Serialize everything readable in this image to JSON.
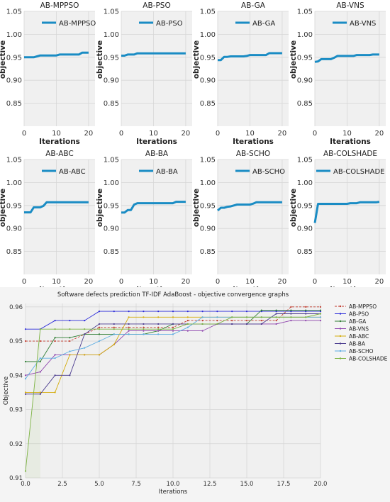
{
  "chart_data": [
    {
      "type": "line",
      "title": "AB-MPPSO",
      "xlabel": "Iterations",
      "ylabel": "objective",
      "xlim": [
        0,
        22
      ],
      "ylim": [
        0.8,
        1.05
      ],
      "xticks": [
        0,
        10,
        20
      ],
      "yticks": [
        0.85,
        0.9,
        0.95,
        1.0,
        1.05
      ],
      "legend": "top-right",
      "grid": true,
      "series": [
        {
          "name": "AB-MPPSO",
          "x": [
            0,
            1,
            2,
            3,
            4,
            5,
            6,
            7,
            8,
            9,
            10,
            11,
            12,
            13,
            14,
            15,
            16,
            17,
            18,
            19,
            20
          ],
          "values": [
            0.95,
            0.95,
            0.95,
            0.95,
            0.952,
            0.954,
            0.954,
            0.954,
            0.954,
            0.954,
            0.954,
            0.956,
            0.956,
            0.956,
            0.956,
            0.956,
            0.956,
            0.956,
            0.96,
            0.96,
            0.96
          ]
        }
      ]
    },
    {
      "type": "line",
      "title": "AB-PSO",
      "xlabel": "Iterations",
      "ylabel": "objective",
      "xlim": [
        0,
        22
      ],
      "ylim": [
        0.8,
        1.05
      ],
      "xticks": [
        0,
        10,
        20
      ],
      "yticks": [
        0.85,
        0.9,
        0.95,
        1.0,
        1.05
      ],
      "legend": "top-right",
      "grid": true,
      "series": [
        {
          "name": "AB-PSO",
          "x": [
            0,
            1,
            2,
            3,
            4,
            5,
            6,
            7,
            8,
            9,
            10,
            11,
            12,
            13,
            14,
            15,
            16,
            17,
            18,
            19,
            20
          ],
          "values": [
            0.9535,
            0.9535,
            0.956,
            0.956,
            0.956,
            0.9587,
            0.9587,
            0.9587,
            0.9587,
            0.9587,
            0.9587,
            0.9587,
            0.9587,
            0.9587,
            0.9587,
            0.9587,
            0.9587,
            0.9587,
            0.9587,
            0.9587,
            0.9587
          ]
        }
      ]
    },
    {
      "type": "line",
      "title": "AB-GA",
      "xlabel": "Iterations",
      "ylabel": "objective",
      "xlim": [
        0,
        22
      ],
      "ylim": [
        0.8,
        1.05
      ],
      "xticks": [
        0,
        10,
        20
      ],
      "yticks": [
        0.85,
        0.9,
        0.95,
        1.0,
        1.05
      ],
      "legend": "top-right",
      "grid": true,
      "series": [
        {
          "name": "AB-GA",
          "x": [
            0,
            1,
            2,
            3,
            4,
            5,
            6,
            7,
            8,
            9,
            10,
            11,
            12,
            13,
            14,
            15,
            16,
            17,
            18,
            19,
            20
          ],
          "values": [
            0.944,
            0.944,
            0.951,
            0.951,
            0.952,
            0.952,
            0.952,
            0.952,
            0.952,
            0.953,
            0.955,
            0.955,
            0.955,
            0.955,
            0.955,
            0.955,
            0.959,
            0.959,
            0.959,
            0.959,
            0.959
          ]
        }
      ]
    },
    {
      "type": "line",
      "title": "AB-VNS",
      "xlabel": "Iterations",
      "ylabel": "objective",
      "xlim": [
        0,
        22
      ],
      "ylim": [
        0.8,
        1.05
      ],
      "xticks": [
        0,
        10,
        20
      ],
      "yticks": [
        0.85,
        0.9,
        0.95,
        1.0,
        1.05
      ],
      "legend": "top-right",
      "grid": true,
      "series": [
        {
          "name": "AB-VNS",
          "x": [
            0,
            1,
            2,
            3,
            4,
            5,
            6,
            7,
            8,
            9,
            10,
            11,
            12,
            13,
            14,
            15,
            16,
            17,
            18,
            19,
            20
          ],
          "values": [
            0.94,
            0.941,
            0.946,
            0.946,
            0.946,
            0.946,
            0.949,
            0.953,
            0.953,
            0.953,
            0.953,
            0.953,
            0.953,
            0.955,
            0.955,
            0.955,
            0.955,
            0.955,
            0.956,
            0.956,
            0.956
          ]
        }
      ]
    },
    {
      "type": "line",
      "title": "AB-ABC",
      "xlabel": "Iterations",
      "ylabel": "objective",
      "xlim": [
        0,
        22
      ],
      "ylim": [
        0.8,
        1.05
      ],
      "xticks": [
        0,
        10,
        20
      ],
      "yticks": [
        0.85,
        0.9,
        0.95,
        1.0,
        1.05
      ],
      "legend": "top-right",
      "grid": true,
      "series": [
        {
          "name": "AB-ABC",
          "x": [
            0,
            1,
            2,
            3,
            4,
            5,
            6,
            7,
            8,
            9,
            10,
            11,
            12,
            13,
            14,
            15,
            16,
            17,
            18,
            19,
            20
          ],
          "values": [
            0.935,
            0.935,
            0.935,
            0.946,
            0.946,
            0.946,
            0.949,
            0.957,
            0.957,
            0.957,
            0.957,
            0.957,
            0.957,
            0.957,
            0.957,
            0.957,
            0.957,
            0.957,
            0.957,
            0.957,
            0.957
          ]
        }
      ]
    },
    {
      "type": "line",
      "title": "AB-BA",
      "xlabel": "Iterations",
      "ylabel": "objective",
      "xlim": [
        0,
        22
      ],
      "ylim": [
        0.8,
        1.05
      ],
      "xticks": [
        0,
        10,
        20
      ],
      "yticks": [
        0.85,
        0.9,
        0.95,
        1.0,
        1.05
      ],
      "legend": "top-right",
      "grid": true,
      "series": [
        {
          "name": "AB-BA",
          "x": [
            0,
            1,
            2,
            3,
            4,
            5,
            6,
            7,
            8,
            9,
            10,
            11,
            12,
            13,
            14,
            15,
            16,
            17,
            18,
            19,
            20
          ],
          "values": [
            0.9345,
            0.9345,
            0.94,
            0.94,
            0.952,
            0.955,
            0.955,
            0.955,
            0.955,
            0.955,
            0.955,
            0.955,
            0.955,
            0.955,
            0.955,
            0.955,
            0.955,
            0.958,
            0.958,
            0.958,
            0.958
          ]
        }
      ]
    },
    {
      "type": "line",
      "title": "AB-SCHO",
      "xlabel": "Iterations",
      "ylabel": "objective",
      "xlim": [
        0,
        22
      ],
      "ylim": [
        0.8,
        1.05
      ],
      "xticks": [
        0,
        10,
        20
      ],
      "yticks": [
        0.85,
        0.9,
        0.95,
        1.0,
        1.05
      ],
      "legend": "top-right",
      "grid": true,
      "series": [
        {
          "name": "AB-SCHO",
          "x": [
            0,
            1,
            2,
            3,
            4,
            5,
            6,
            7,
            8,
            9,
            10,
            11,
            12,
            13,
            14,
            15,
            16,
            17,
            18,
            19,
            20
          ],
          "values": [
            0.939,
            0.945,
            0.945,
            0.947,
            0.948,
            0.95,
            0.952,
            0.952,
            0.952,
            0.952,
            0.952,
            0.954,
            0.957,
            0.957,
            0.957,
            0.957,
            0.957,
            0.957,
            0.957,
            0.957,
            0.957
          ]
        }
      ]
    },
    {
      "type": "line",
      "title": "AB-COLSHADE",
      "xlabel": "Iterations",
      "ylabel": "objective",
      "xlim": [
        0,
        22
      ],
      "ylim": [
        0.8,
        1.05
      ],
      "xticks": [
        0,
        10,
        20
      ],
      "yticks": [
        0.85,
        0.9,
        0.95,
        1.0,
        1.05
      ],
      "legend": "top",
      "grid": true,
      "series": [
        {
          "name": "AB-COLSHADE",
          "x": [
            0,
            1,
            2,
            3,
            4,
            5,
            6,
            7,
            8,
            9,
            10,
            11,
            12,
            13,
            14,
            15,
            16,
            17,
            18,
            19,
            20
          ],
          "values": [
            0.912,
            0.9535,
            0.9535,
            0.9535,
            0.9535,
            0.9535,
            0.9535,
            0.9535,
            0.9535,
            0.9535,
            0.9535,
            0.955,
            0.955,
            0.955,
            0.957,
            0.957,
            0.957,
            0.957,
            0.957,
            0.957,
            0.958
          ]
        }
      ]
    },
    {
      "type": "line",
      "title": "Software defects prediction TF-IDF AdaBoost -  objective convergence graphs",
      "xlabel": "Iterations",
      "ylabel": "Objective",
      "xlim": [
        0,
        20
      ],
      "ylim": [
        0.91,
        0.961
      ],
      "xticks": [
        0.0,
        2.5,
        5.0,
        7.5,
        10.0,
        12.5,
        15.0,
        17.5,
        20.0
      ],
      "yticks": [
        0.91,
        0.92,
        0.93,
        0.94,
        0.95,
        0.96
      ],
      "legend": "right",
      "grid": true,
      "x": [
        0,
        1,
        2,
        3,
        4,
        5,
        6,
        7,
        8,
        9,
        10,
        11,
        12,
        13,
        14,
        15,
        16,
        17,
        18,
        19,
        20
      ],
      "series": [
        {
          "name": "AB-MPPSO",
          "color": "#c0392b",
          "dash": "3,2",
          "values": [
            0.95,
            0.95,
            0.95,
            0.95,
            0.952,
            0.954,
            0.954,
            0.954,
            0.954,
            0.954,
            0.954,
            0.956,
            0.956,
            0.956,
            0.956,
            0.956,
            0.956,
            0.956,
            0.96,
            0.96,
            0.96
          ]
        },
        {
          "name": "AB-PSO",
          "color": "#2b2bd9",
          "dash": "",
          "values": [
            0.9535,
            0.9535,
            0.956,
            0.956,
            0.956,
            0.9587,
            0.9587,
            0.9587,
            0.9587,
            0.9587,
            0.9587,
            0.9587,
            0.9587,
            0.9587,
            0.9587,
            0.9587,
            0.9587,
            0.9587,
            0.9587,
            0.9587,
            0.9587
          ]
        },
        {
          "name": "AB-GA",
          "color": "#2e7d32",
          "dash": "",
          "values": [
            0.944,
            0.944,
            0.951,
            0.951,
            0.952,
            0.952,
            0.952,
            0.952,
            0.952,
            0.953,
            0.955,
            0.955,
            0.955,
            0.955,
            0.955,
            0.955,
            0.959,
            0.959,
            0.959,
            0.959,
            0.959
          ]
        },
        {
          "name": "AB-VNS",
          "color": "#8e44ad",
          "dash": "",
          "values": [
            0.94,
            0.941,
            0.946,
            0.946,
            0.946,
            0.946,
            0.949,
            0.953,
            0.953,
            0.953,
            0.953,
            0.953,
            0.953,
            0.955,
            0.955,
            0.955,
            0.955,
            0.955,
            0.956,
            0.956,
            0.956
          ]
        },
        {
          "name": "AB-ABC",
          "color": "#d4ac0d",
          "dash": "",
          "values": [
            0.935,
            0.935,
            0.935,
            0.946,
            0.946,
            0.946,
            0.949,
            0.957,
            0.957,
            0.957,
            0.957,
            0.957,
            0.957,
            0.957,
            0.957,
            0.957,
            0.957,
            0.957,
            0.957,
            0.957,
            0.957
          ]
        },
        {
          "name": "AB-BA",
          "color": "#4a3b8f",
          "dash": "",
          "values": [
            0.9345,
            0.9345,
            0.94,
            0.94,
            0.952,
            0.955,
            0.955,
            0.955,
            0.955,
            0.955,
            0.955,
            0.955,
            0.955,
            0.955,
            0.955,
            0.955,
            0.955,
            0.958,
            0.958,
            0.958,
            0.958
          ]
        },
        {
          "name": "AB-SCHO",
          "color": "#5dade2",
          "dash": "",
          "values": [
            0.939,
            0.945,
            0.945,
            0.947,
            0.948,
            0.95,
            0.952,
            0.952,
            0.952,
            0.952,
            0.952,
            0.954,
            0.957,
            0.957,
            0.957,
            0.957,
            0.957,
            0.957,
            0.957,
            0.957,
            0.957
          ]
        },
        {
          "name": "AB-COLSHADE",
          "color": "#7cb342",
          "dash": "",
          "values": [
            0.912,
            0.9535,
            0.9535,
            0.9535,
            0.9535,
            0.9535,
            0.9535,
            0.9535,
            0.9535,
            0.9535,
            0.9535,
            0.955,
            0.955,
            0.955,
            0.957,
            0.957,
            0.957,
            0.957,
            0.957,
            0.957,
            0.958
          ]
        }
      ]
    }
  ],
  "colors": {
    "small_line": "#1a8cc4",
    "background": "#f0f0f0",
    "grid": "#d6d6d6"
  }
}
